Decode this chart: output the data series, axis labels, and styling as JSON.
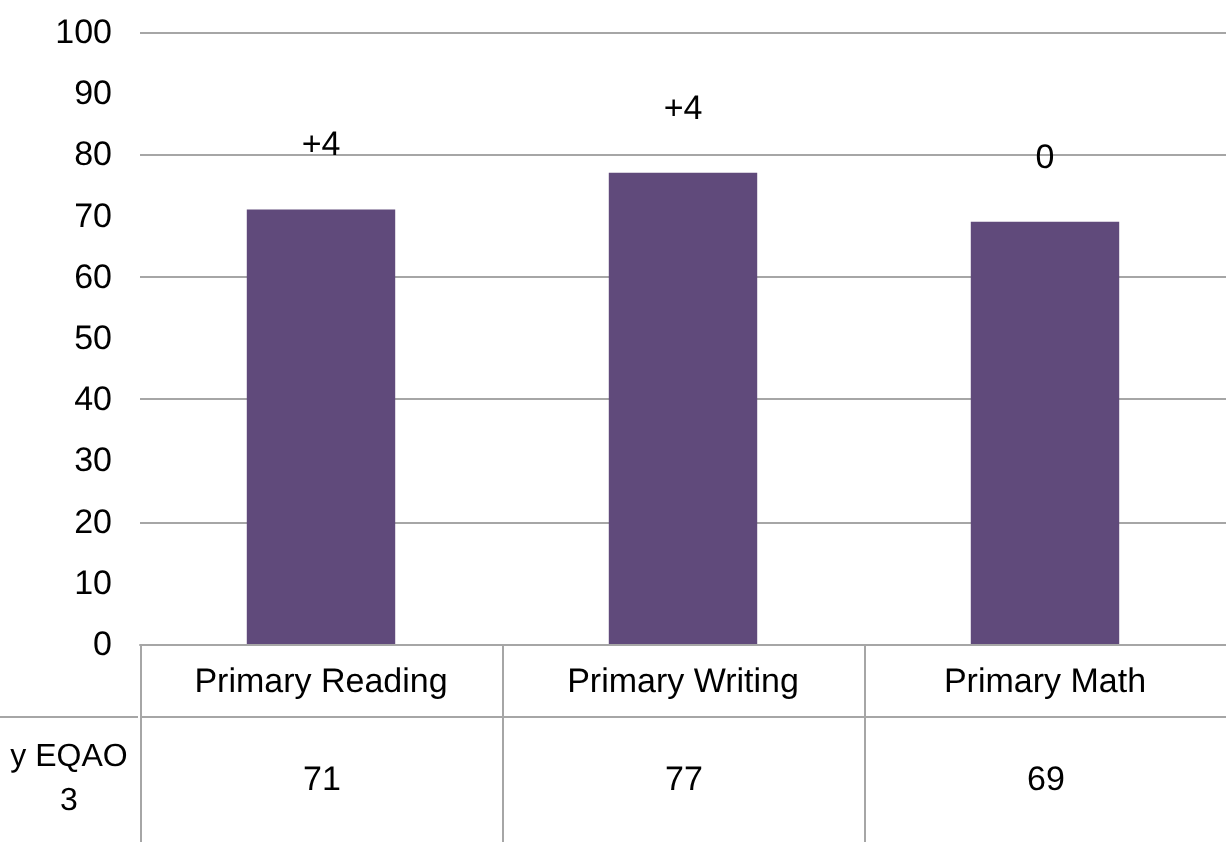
{
  "chart_data": {
    "type": "bar",
    "categories": [
      "Primary Reading",
      "Primary Writing",
      "Primary Math"
    ],
    "series": [
      {
        "name": "y EQAO 3",
        "color": "#604a7b",
        "values": [
          71,
          77,
          69
        ]
      }
    ],
    "ylim": [
      0,
      100
    ],
    "yticks": [
      0,
      10,
      20,
      30,
      40,
      50,
      60,
      70,
      80,
      90,
      100
    ],
    "grid": "y",
    "legend": false,
    "data_labels": true,
    "annotations": [
      "+4",
      "+4",
      "0"
    ]
  }
}
